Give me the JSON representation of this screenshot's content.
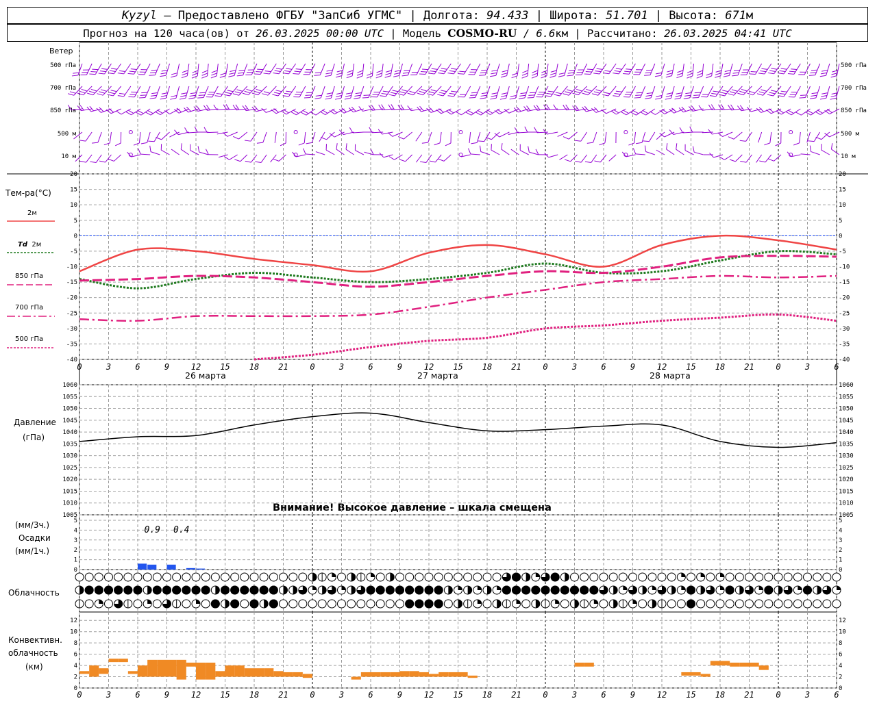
{
  "header": {
    "station": "Kyzyl",
    "provided_by": "– Предоставлено ФГБУ \"ЗапСиб УГМС\"",
    "lon_label": "| Долгота:",
    "lon_value": "94.433",
    "lat_label": "| Широта:",
    "lat_value": "51.701",
    "alt_label": "| Высота:",
    "alt_value": "671",
    "alt_unit": "м",
    "forecast_prefix": "Прогноз на 120 часа(ов) от",
    "forecast_start": "26.03.2025 00:00 UTC",
    "model_label": "| Модель",
    "model_name": "COSMO-RU",
    "model_sep": "/",
    "model_res": "6.6",
    "model_res_unit": "км",
    "calc_label": "| Рассчитано:",
    "calc_time": "26.03.2025 04:41 UTC"
  },
  "labels": {
    "wind": "Ветер",
    "temp": "Тем-ра(°C)",
    "t2m": "2м",
    "td": "Td",
    "td2m": "2м",
    "t850": "850 гПа",
    "t700": "700 гПа",
    "t500": "500 гПа",
    "pressure": "Давление",
    "pressure_unit": "(гПа)",
    "precip_unit3": "(мм/3ч.)",
    "precip": "Осадки",
    "precip_unit1": "(мм/1ч.)",
    "cloud": "Облачность",
    "conv1": "Конвективн.",
    "conv2": "облачность",
    "conv_unit": "(км)",
    "pressure_warning": "Внимание! Высокое давление – шкала смещена",
    "day1": "26 марта",
    "day2": "27 марта",
    "day3": "28 марта"
  },
  "colors": {
    "wind": "#9400d3",
    "t2m": "#ef4444",
    "td": "#1f7a1f",
    "t850": "#e0207f",
    "t700": "#e0207f",
    "t500": "#e0207f",
    "pressure": "#000000",
    "precip": "#2255ee",
    "convective": "#f08a24",
    "zero_line": "#1144ff"
  },
  "wind_levels": [
    "500 гПа",
    "700 гПа",
    "850 гПа",
    "500 м",
    "10 м"
  ],
  "hour_ticks": [
    "0",
    "3",
    "6",
    "9",
    "12",
    "15",
    "18",
    "21",
    "0",
    "3",
    "6",
    "9",
    "12",
    "15",
    "18",
    "21",
    "0",
    "3",
    "6",
    "9",
    "12",
    "15",
    "18",
    "21",
    "0",
    "3",
    "6"
  ],
  "chart_data": [
    {
      "type": "line",
      "name": "temperature",
      "ylim": [
        -40,
        20
      ],
      "yticks": [
        20,
        15,
        10,
        5,
        0,
        -5,
        -10,
        -15,
        -20,
        -25,
        -30,
        -35,
        -40
      ],
      "x_hours": [
        0,
        6,
        12,
        18,
        24,
        30,
        36,
        42,
        48,
        54,
        60,
        66,
        72,
        78
      ],
      "series": [
        {
          "name": "2м",
          "values": [
            -11.5,
            -4.5,
            -5,
            -7.5,
            -9.5,
            -11.5,
            -5.5,
            -3,
            -6,
            -10,
            -3,
            0,
            -1.5,
            -4.5
          ]
        },
        {
          "name": "Td 2м",
          "values": [
            -14,
            -17,
            -14,
            -12,
            -13.5,
            -15,
            -14,
            -12,
            -9,
            -12,
            -11.5,
            -8,
            -5,
            -6
          ]
        },
        {
          "name": "850 гПа",
          "values": [
            -14.5,
            -14,
            -13,
            -13.5,
            -15,
            -16.5,
            -15,
            -13,
            -11.5,
            -12,
            -10,
            -7,
            -6.5,
            -6.8
          ]
        },
        {
          "name": "700 гПа",
          "values": [
            -27,
            -27.5,
            -26,
            -26,
            -26,
            -25.5,
            -23,
            -20,
            -17.5,
            -15,
            -14,
            -13,
            -13.5,
            -13
          ]
        },
        {
          "name": "500 гПа",
          "values": [
            null,
            null,
            null,
            -40,
            -38.5,
            -36,
            -34,
            -33,
            -30,
            -29,
            -27.5,
            -26.5,
            -25.5,
            -27.5
          ]
        }
      ]
    },
    {
      "type": "line",
      "name": "pressure",
      "ylim": [
        1005,
        1060
      ],
      "yticks": [
        1060,
        1055,
        1050,
        1045,
        1040,
        1035,
        1030,
        1025,
        1020,
        1015,
        1010,
        1005
      ],
      "x_hours": [
        0,
        6,
        12,
        18,
        24,
        30,
        36,
        42,
        48,
        54,
        60,
        66,
        72,
        78
      ],
      "values": [
        1036,
        1038,
        1038.5,
        1043,
        1046.5,
        1048,
        1044,
        1040.5,
        1041,
        1042.5,
        1043,
        1036,
        1033.5,
        1035.5
      ]
    },
    {
      "type": "bar",
      "name": "precipitation",
      "ylim": [
        0,
        5
      ],
      "yticks": [
        5,
        4,
        3,
        2,
        1,
        0
      ],
      "annotations": [
        {
          "hour": 7.5,
          "text": "0.9"
        },
        {
          "hour": 10.5,
          "text": "0.4"
        }
      ],
      "bars": [
        {
          "hour": 6,
          "value": 0.6
        },
        {
          "hour": 7,
          "value": 0.5
        },
        {
          "hour": 9,
          "value": 0.5
        },
        {
          "hour": 11,
          "value": 0.15
        },
        {
          "hour": 12,
          "value": 0.1
        }
      ]
    },
    {
      "type": "bar",
      "name": "convective",
      "ylim": [
        0,
        13
      ],
      "yticks": [
        12,
        10,
        8,
        6,
        4,
        2,
        0
      ],
      "bars": [
        {
          "hour": 0,
          "bottom": 2.5,
          "top": 3
        },
        {
          "hour": 1,
          "bottom": 2,
          "top": 4
        },
        {
          "hour": 2,
          "bottom": 2.5,
          "top": 3.5
        },
        {
          "hour": 3,
          "bottom": 4.6,
          "top": 5.2
        },
        {
          "hour": 4,
          "bottom": 4.6,
          "top": 5.2
        },
        {
          "hour": 5,
          "bottom": 2.5,
          "top": 3
        },
        {
          "hour": 6,
          "bottom": 2,
          "top": 4
        },
        {
          "hour": 7,
          "bottom": 2,
          "top": 5
        },
        {
          "hour": 8,
          "bottom": 2,
          "top": 5
        },
        {
          "hour": 9,
          "bottom": 2,
          "top": 5
        },
        {
          "hour": 10,
          "bottom": 1.5,
          "top": 5
        },
        {
          "hour": 11,
          "bottom": 3.8,
          "top": 4.5
        },
        {
          "hour": 12,
          "bottom": 1.5,
          "top": 4.5
        },
        {
          "hour": 13,
          "bottom": 1.5,
          "top": 4.5
        },
        {
          "hour": 14,
          "bottom": 2,
          "top": 3
        },
        {
          "hour": 15,
          "bottom": 2,
          "top": 4
        },
        {
          "hour": 16,
          "bottom": 2,
          "top": 4
        },
        {
          "hour": 17,
          "bottom": 2,
          "top": 3.5
        },
        {
          "hour": 18,
          "bottom": 2,
          "top": 3.5
        },
        {
          "hour": 19,
          "bottom": 2,
          "top": 3.5
        },
        {
          "hour": 20,
          "bottom": 2,
          "top": 3
        },
        {
          "hour": 21,
          "bottom": 2,
          "top": 2.8
        },
        {
          "hour": 22,
          "bottom": 2,
          "top": 2.8
        },
        {
          "hour": 23,
          "bottom": 1.8,
          "top": 2.5
        },
        {
          "hour": 28,
          "bottom": 1.5,
          "top": 2
        },
        {
          "hour": 29,
          "bottom": 2,
          "top": 2.8
        },
        {
          "hour": 30,
          "bottom": 2,
          "top": 2.8
        },
        {
          "hour": 31,
          "bottom": 2,
          "top": 2.8
        },
        {
          "hour": 32,
          "bottom": 2,
          "top": 2.8
        },
        {
          "hour": 33,
          "bottom": 2,
          "top": 3
        },
        {
          "hour": 34,
          "bottom": 2,
          "top": 3
        },
        {
          "hour": 35,
          "bottom": 2,
          "top": 2.8
        },
        {
          "hour": 36,
          "bottom": 2,
          "top": 2.5
        },
        {
          "hour": 37,
          "bottom": 2,
          "top": 2.8
        },
        {
          "hour": 38,
          "bottom": 2,
          "top": 2.8
        },
        {
          "hour": 39,
          "bottom": 2,
          "top": 2.8
        },
        {
          "hour": 40,
          "bottom": 1.8,
          "top": 2.2
        },
        {
          "hour": 51,
          "bottom": 3.8,
          "top": 4.5
        },
        {
          "hour": 52,
          "bottom": 3.8,
          "top": 4.5
        },
        {
          "hour": 62,
          "bottom": 2.2,
          "top": 2.8
        },
        {
          "hour": 63,
          "bottom": 2.2,
          "top": 2.8
        },
        {
          "hour": 64,
          "bottom": 2,
          "top": 2.5
        },
        {
          "hour": 65,
          "bottom": 4,
          "top": 4.8
        },
        {
          "hour": 66,
          "bottom": 4,
          "top": 4.8
        },
        {
          "hour": 67,
          "bottom": 3.8,
          "top": 4.5
        },
        {
          "hour": 68,
          "bottom": 3.8,
          "top": 4.5
        },
        {
          "hour": 69,
          "bottom": 3.8,
          "top": 4.5
        },
        {
          "hour": 70,
          "bottom": 3.2,
          "top": 4
        }
      ]
    }
  ]
}
